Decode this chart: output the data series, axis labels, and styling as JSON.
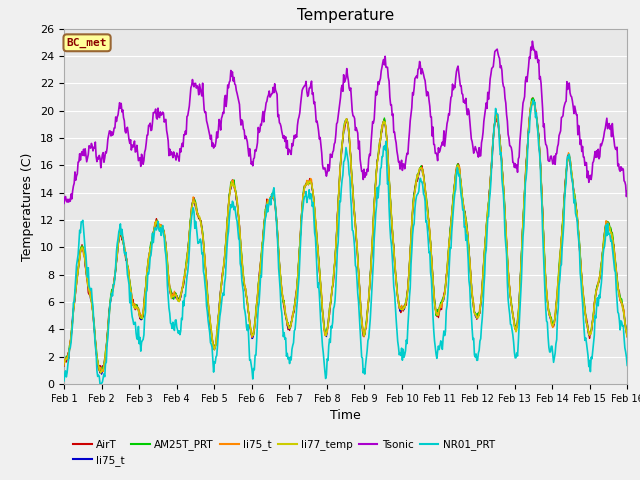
{
  "title": "Temperature",
  "xlabel": "Time",
  "ylabel": "Temperatures (C)",
  "ylim": [
    0,
    26
  ],
  "xlim": [
    0,
    15
  ],
  "fig_facecolor": "#f0f0f0",
  "ax_facecolor": "#e8e8e8",
  "annotation_text": "BC_met",
  "annotation_facecolor": "#ffff99",
  "annotation_edgecolor": "#996633",
  "series": {
    "AirT": {
      "color": "#cc0000",
      "lw": 1.0
    },
    "li75_t": {
      "color": "#0000cc",
      "lw": 1.0
    },
    "AM25T_PRT": {
      "color": "#00cc00",
      "lw": 1.0
    },
    "li75_t2": {
      "color": "#ff8800",
      "lw": 1.0
    },
    "li77_temp": {
      "color": "#cccc00",
      "lw": 1.0
    },
    "Tsonic": {
      "color": "#aa00cc",
      "lw": 1.2
    },
    "NR01_PRT": {
      "color": "#00cccc",
      "lw": 1.2
    }
  },
  "xtick_labels": [
    "Feb 1",
    "Feb 2",
    "Feb 3",
    "Feb 4",
    "Feb 5",
    "Feb 6",
    "Feb 7",
    "Feb 8",
    "Feb 9",
    "Feb 10",
    "Feb 11",
    "Feb 12",
    "Feb 13",
    "Feb 14",
    "Feb 15",
    "Feb 16"
  ],
  "legend_labels": [
    "AirT",
    "li75_t",
    "AM25T_PRT",
    "li75_t",
    "li77_temp",
    "Tsonic",
    "NR01_PRT"
  ],
  "legend_colors": [
    "#cc0000",
    "#0000cc",
    "#00cc00",
    "#ff8800",
    "#cccc00",
    "#aa00cc",
    "#00cccc"
  ]
}
